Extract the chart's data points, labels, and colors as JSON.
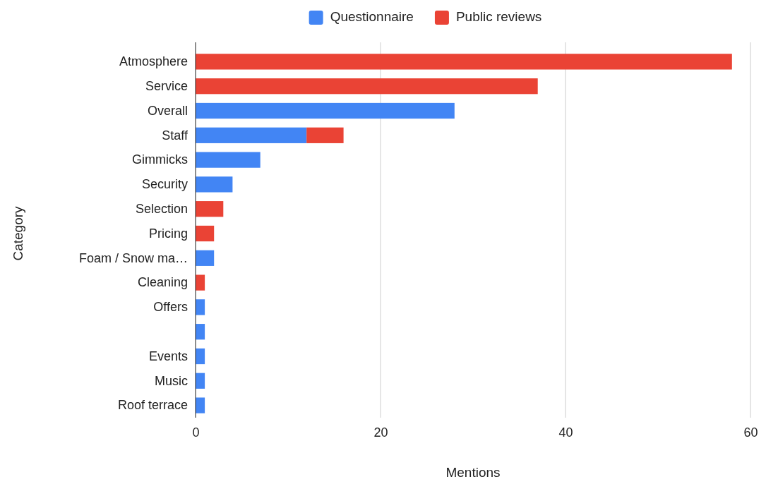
{
  "chart_data": {
    "type": "bar",
    "orientation": "horizontal",
    "stacked": true,
    "xlabel": "Mentions",
    "ylabel": "Category",
    "categories": [
      "Atmosphere",
      "Service",
      "Overall",
      "Staff",
      "Gimmicks",
      "Security",
      "Selection",
      "Pricing",
      "Foam / Snow ma…",
      "Cleaning",
      "Offers",
      null,
      "Events",
      "Music",
      "Roof terrace"
    ],
    "series": [
      {
        "name": "Questionnaire",
        "color": "#4285f4",
        "values": [
          null,
          null,
          28,
          12,
          7,
          4,
          null,
          null,
          2,
          null,
          1,
          1,
          1,
          1,
          1
        ]
      },
      {
        "name": "Public reviews",
        "color": "#ea4335",
        "values": [
          58,
          37,
          null,
          4,
          null,
          null,
          3,
          2,
          null,
          1,
          null,
          null,
          null,
          null,
          null
        ]
      }
    ],
    "xlim": [
      0,
      60
    ],
    "xticks": [
      0,
      20,
      40,
      60
    ],
    "grid": "x",
    "legend": "top"
  }
}
